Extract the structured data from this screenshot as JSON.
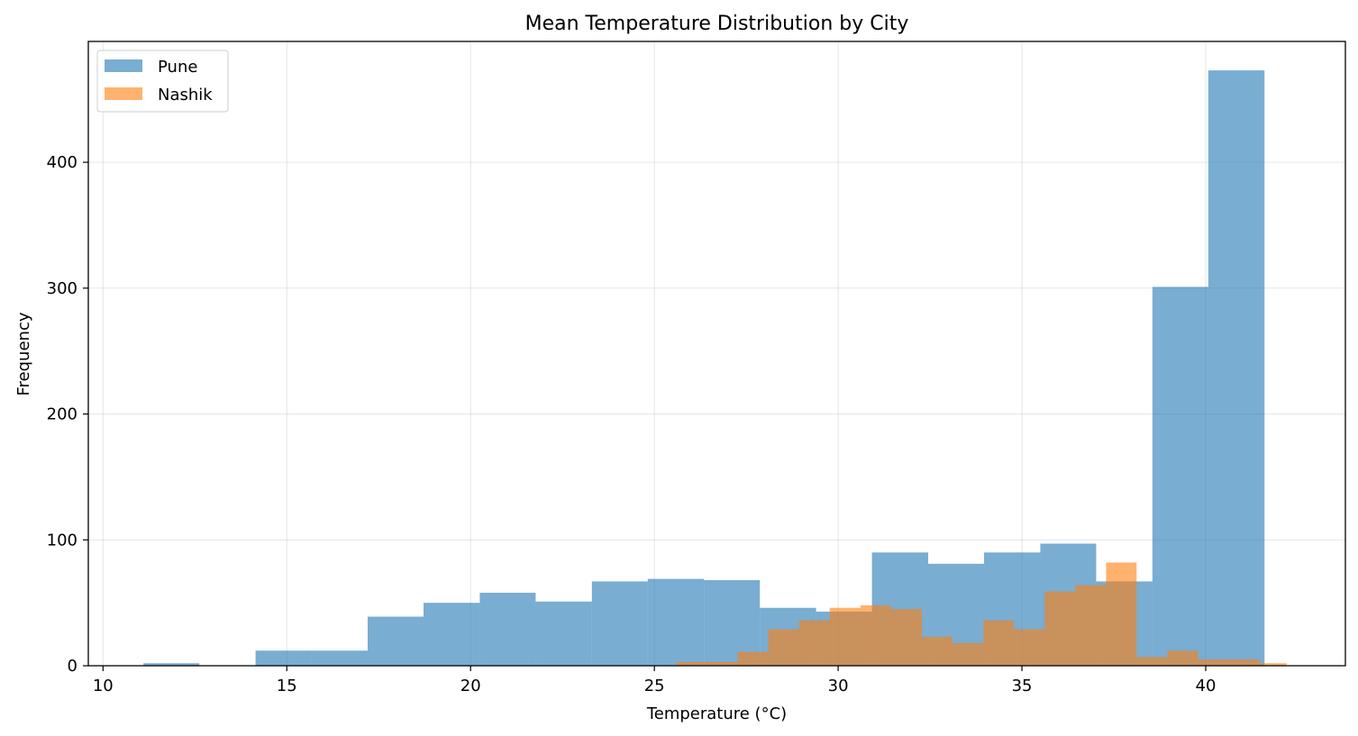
{
  "chart_data": {
    "type": "histogram",
    "title": "Mean Temperature Distribution by City",
    "xlabel": "Temperature (°C)",
    "ylabel": "Frequency",
    "xlim": [
      9.6,
      43.8
    ],
    "ylim": [
      0,
      496
    ],
    "xticks": [
      10,
      15,
      20,
      25,
      30,
      35,
      40
    ],
    "yticks": [
      0,
      100,
      200,
      300,
      400
    ],
    "grid": true,
    "legend_position": "top-left",
    "series": [
      {
        "name": "Pune",
        "color": "#1f77b4",
        "opacity": 0.6,
        "bins": [
          {
            "x0": 11.1,
            "x1": 12.62,
            "count": 2
          },
          {
            "x0": 12.62,
            "x1": 14.15,
            "count": 0
          },
          {
            "x0": 14.15,
            "x1": 15.67,
            "count": 12
          },
          {
            "x0": 15.67,
            "x1": 17.2,
            "count": 12
          },
          {
            "x0": 17.2,
            "x1": 18.72,
            "count": 39
          },
          {
            "x0": 18.72,
            "x1": 20.25,
            "count": 50
          },
          {
            "x0": 20.25,
            "x1": 21.77,
            "count": 58
          },
          {
            "x0": 21.77,
            "x1": 23.3,
            "count": 51
          },
          {
            "x0": 23.3,
            "x1": 24.82,
            "count": 67
          },
          {
            "x0": 24.82,
            "x1": 26.35,
            "count": 69
          },
          {
            "x0": 26.35,
            "x1": 27.87,
            "count": 68
          },
          {
            "x0": 27.87,
            "x1": 29.4,
            "count": 46
          },
          {
            "x0": 29.4,
            "x1": 30.92,
            "count": 43
          },
          {
            "x0": 30.92,
            "x1": 32.45,
            "count": 90
          },
          {
            "x0": 32.45,
            "x1": 33.97,
            "count": 81
          },
          {
            "x0": 33.97,
            "x1": 35.5,
            "count": 90
          },
          {
            "x0": 35.5,
            "x1": 37.02,
            "count": 97
          },
          {
            "x0": 37.02,
            "x1": 38.55,
            "count": 67
          },
          {
            "x0": 38.55,
            "x1": 40.07,
            "count": 301
          },
          {
            "x0": 40.07,
            "x1": 41.6,
            "count": 473
          }
        ]
      },
      {
        "name": "Nashik",
        "color": "#ff7f0e",
        "opacity": 0.6,
        "bins": [
          {
            "x0": 25.6,
            "x1": 26.43,
            "count": 3
          },
          {
            "x0": 26.43,
            "x1": 27.27,
            "count": 3
          },
          {
            "x0": 27.27,
            "x1": 28.1,
            "count": 11
          },
          {
            "x0": 28.1,
            "x1": 28.94,
            "count": 29
          },
          {
            "x0": 28.94,
            "x1": 29.77,
            "count": 36
          },
          {
            "x0": 29.77,
            "x1": 30.61,
            "count": 46
          },
          {
            "x0": 30.61,
            "x1": 31.44,
            "count": 48
          },
          {
            "x0": 31.44,
            "x1": 32.28,
            "count": 45
          },
          {
            "x0": 32.28,
            "x1": 33.11,
            "count": 23
          },
          {
            "x0": 33.11,
            "x1": 33.95,
            "count": 18
          },
          {
            "x0": 33.95,
            "x1": 34.78,
            "count": 36
          },
          {
            "x0": 34.78,
            "x1": 35.62,
            "count": 29
          },
          {
            "x0": 35.62,
            "x1": 36.45,
            "count": 59
          },
          {
            "x0": 36.45,
            "x1": 37.29,
            "count": 64
          },
          {
            "x0": 37.29,
            "x1": 38.12,
            "count": 82
          },
          {
            "x0": 38.12,
            "x1": 38.96,
            "count": 7
          },
          {
            "x0": 38.96,
            "x1": 39.79,
            "count": 12
          },
          {
            "x0": 39.79,
            "x1": 40.63,
            "count": 5
          },
          {
            "x0": 40.63,
            "x1": 41.46,
            "count": 5
          },
          {
            "x0": 41.46,
            "x1": 42.2,
            "count": 2
          }
        ]
      }
    ]
  }
}
